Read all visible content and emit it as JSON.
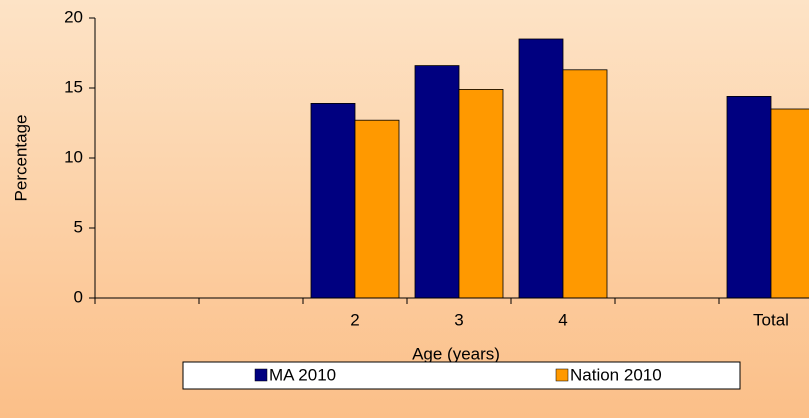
{
  "chart_data": {
    "type": "bar",
    "x_label": "Age (years)",
    "y_label": "Percentage",
    "categories": [
      null,
      null,
      "2",
      "3",
      "4",
      null,
      "Total"
    ],
    "series": [
      {
        "name": "MA 2010",
        "color": "#000080",
        "values": [
          null,
          null,
          13.9,
          16.6,
          18.5,
          null,
          14.4
        ]
      },
      {
        "name": "Nation 2010",
        "color": "#ff9900",
        "values": [
          null,
          null,
          12.7,
          14.9,
          16.3,
          null,
          13.5
        ]
      }
    ],
    "ylim": [
      0,
      20
    ],
    "yticks": [
      0,
      5,
      10,
      15,
      20
    ]
  }
}
